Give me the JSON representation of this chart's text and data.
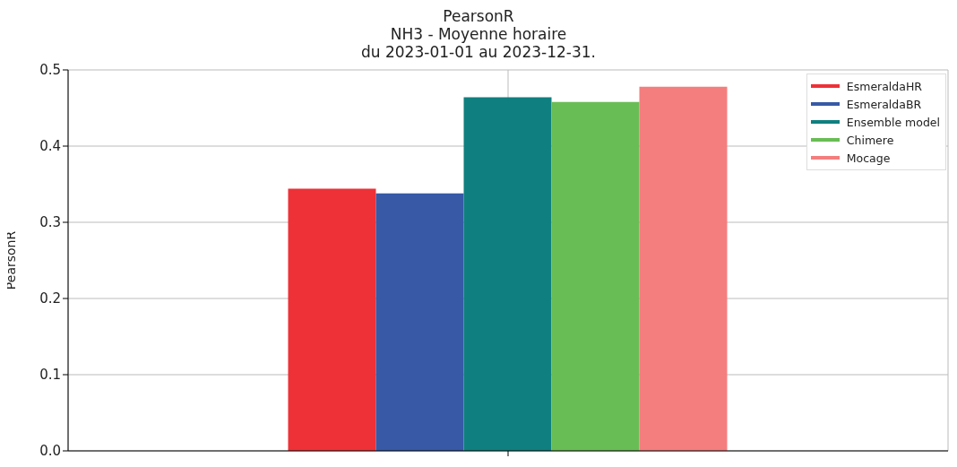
{
  "chart_data": {
    "type": "bar",
    "title": "PearsonR",
    "subtitle": "NH3 - Moyenne horaire\ndu 2023-01-01 au 2023-12-31.",
    "ylabel": "PearsonR",
    "categories": [
      null
    ],
    "series": [
      {
        "name": "EsmeraldaHR",
        "color": "#ee3137",
        "values": [
          0.344
        ]
      },
      {
        "name": "EsmeraldaBR",
        "color": "#3759a6",
        "values": [
          0.338
        ]
      },
      {
        "name": "Ensemble model",
        "color": "#0f807f",
        "values": [
          0.464
        ]
      },
      {
        "name": "Chimere",
        "color": "#69bd55",
        "values": [
          0.458
        ]
      },
      {
        "name": "Mocage",
        "color": "#f47e7e",
        "values": [
          0.478
        ]
      }
    ],
    "ylim": [
      0,
      0.5
    ],
    "yticks": [
      {
        "value": 0,
        "label": "0.0"
      },
      0.1,
      0.2,
      0.3,
      0.4,
      0.5
    ],
    "grid": true,
    "legend": "top right"
  }
}
